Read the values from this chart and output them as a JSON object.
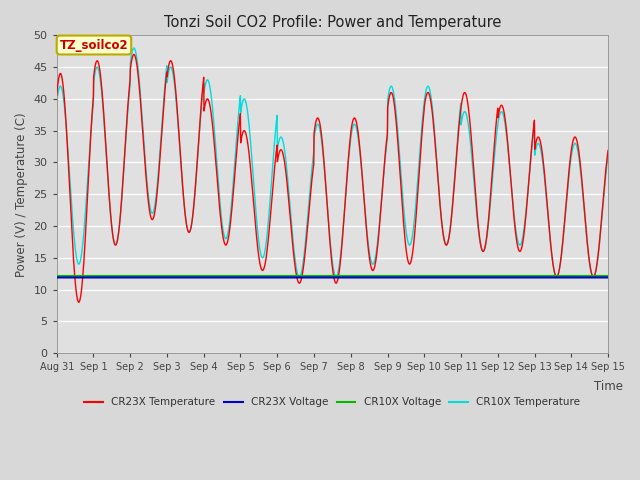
{
  "title": "Tonzi Soil CO2 Profile: Power and Temperature",
  "ylabel": "Power (V) / Temperature (C)",
  "xlabel": "Time",
  "annotation": "TZ_soilco2",
  "ylim": [
    0,
    50
  ],
  "fig_bg_color": "#d8d8d8",
  "plot_bg_color": "#e0e0e0",
  "cr23x_temp_color": "#ff0000",
  "cr23x_volt_color": "#0000cc",
  "cr10x_volt_color": "#00bb00",
  "cr10x_temp_color": "#00dddd",
  "cr23x_volt_value": 11.9,
  "cr10x_volt_value": 12.1,
  "legend_labels": [
    "CR23X Temperature",
    "CR23X Voltage",
    "CR10X Voltage",
    "CR10X Temperature"
  ],
  "xtick_labels": [
    "Aug 31",
    "Sep 1",
    "Sep 2",
    "Sep 3",
    "Sep 4",
    "Sep 5",
    "Sep 6",
    "Sep 7",
    "Sep 8",
    "Sep 9",
    "Sep 10",
    "Sep 11",
    "Sep 12",
    "Sep 13",
    "Sep 14",
    "Sep 15"
  ],
  "daily_peaks_cr23x": [
    44,
    46,
    47,
    46,
    40,
    35,
    32,
    37,
    37,
    41,
    41,
    41,
    39,
    34
  ],
  "daily_mins_cr23x": [
    8,
    17,
    21,
    19,
    17,
    13,
    11,
    11,
    13,
    14,
    17,
    16,
    16,
    12
  ],
  "daily_peaks_cr10x": [
    42,
    45,
    48,
    45,
    43,
    40,
    34,
    36,
    36,
    42,
    42,
    38,
    38,
    33
  ],
  "daily_mins_cr10x": [
    14,
    17,
    22,
    19,
    18,
    15,
    12,
    12,
    14,
    17,
    17,
    16,
    17,
    12
  ],
  "num_points": 2000
}
